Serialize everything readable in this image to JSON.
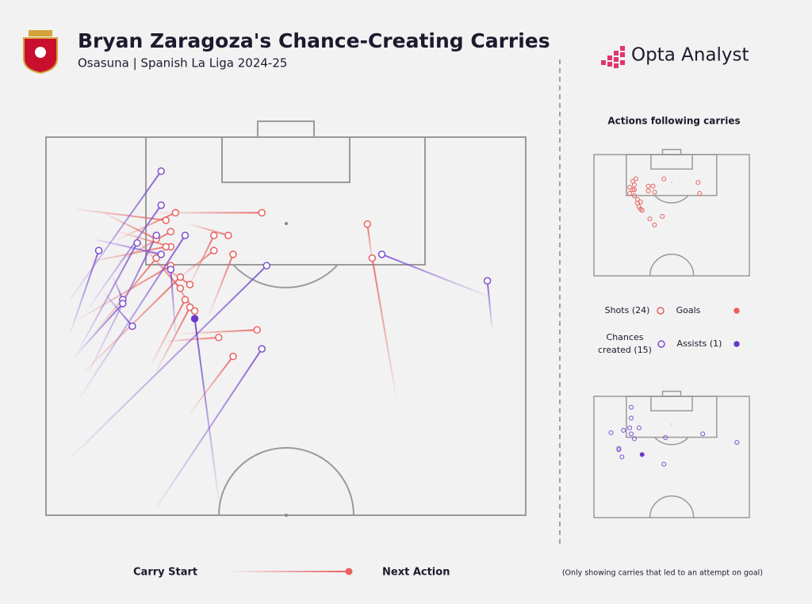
{
  "header": {
    "title": "Bryan Zaragoza's Chance-Creating Carries",
    "subtitle": "Osasuna | Spanish La Liga 2024-25"
  },
  "brand": "Opta Analyst",
  "panel_title": "Actions following carries",
  "legend": {
    "start": "Carry Start",
    "end": "Next Action"
  },
  "footnote": "(Only showing carries that led to an attempt on goal)",
  "chart_data": {
    "type": "carry_map",
    "xlim": [
      0,
      100
    ],
    "ylim": [
      0,
      100
    ],
    "series": [
      {
        "name": "Shots (24)",
        "color": "#e8615f",
        "marker": "hollow",
        "carries": [
          {
            "start": [
              23,
              20
            ],
            "end": [
              45,
              20
            ]
          },
          {
            "start": [
              15,
              27
            ],
            "end": [
              27,
              20
            ]
          },
          {
            "start": [
              6,
              19
            ],
            "end": [
              25,
              22
            ]
          },
          {
            "start": [
              30,
              23
            ],
            "end": [
              38,
              26
            ]
          },
          {
            "start": [
              30,
              39
            ],
            "end": [
              35,
              26
            ]
          },
          {
            "start": [
              12,
              20
            ],
            "end": [
              23,
              27
            ]
          },
          {
            "start": [
              15,
              25
            ],
            "end": [
              26,
              29
            ]
          },
          {
            "start": [
              9,
              33
            ],
            "end": [
              25,
              29
            ]
          },
          {
            "start": [
              28,
              37
            ],
            "end": [
              35,
              30
            ]
          },
          {
            "start": [
              34,
              47
            ],
            "end": [
              39,
              31
            ]
          },
          {
            "start": [
              10,
              52
            ],
            "end": [
              23,
              32
            ]
          },
          {
            "start": [
              7,
              48
            ],
            "end": [
              26,
              34
            ]
          },
          {
            "start": [
              19,
              27
            ],
            "end": [
              28,
              40
            ]
          },
          {
            "start": [
              23,
              33
            ],
            "end": [
              30,
              39
            ]
          },
          {
            "start": [
              22,
              60
            ],
            "end": [
              29,
              43
            ]
          },
          {
            "start": [
              23,
              62
            ],
            "end": [
              30,
              45
            ]
          },
          {
            "start": [
              25,
              35
            ],
            "end": [
              31,
              46
            ]
          },
          {
            "start": [
              28,
              52
            ],
            "end": [
              44,
              51
            ]
          },
          {
            "start": [
              25,
              54
            ],
            "end": [
              36,
              53
            ]
          },
          {
            "start": [
              30,
              73
            ],
            "end": [
              39,
              58
            ]
          },
          {
            "start": [
              68,
              33
            ],
            "end": [
              67,
              23
            ]
          },
          {
            "start": [
              73,
              69
            ],
            "end": [
              68,
              32
            ]
          },
          {
            "start": [
              8,
              62
            ],
            "end": [
              28,
              37
            ]
          },
          {
            "start": [
              15,
              33
            ],
            "end": [
              26,
              25
            ]
          }
        ]
      },
      {
        "name": "Goals",
        "color": "#e8615f",
        "marker": "filled",
        "carries": []
      },
      {
        "name": "Chances created (15)",
        "color": "#7d4fd0",
        "marker": "hollow",
        "carries": [
          {
            "start": [
              5,
              43
            ],
            "end": [
              24,
              9
            ]
          },
          {
            "start": [
              9,
              45
            ],
            "end": [
              24,
              18
            ]
          },
          {
            "start": [
              5,
              52
            ],
            "end": [
              11,
              30
            ]
          },
          {
            "start": [
              7,
              56
            ],
            "end": [
              19,
              28
            ]
          },
          {
            "start": [
              9,
              62
            ],
            "end": [
              23,
              26
            ]
          },
          {
            "start": [
              7,
              69
            ],
            "end": [
              29,
              26
            ]
          },
          {
            "start": [
              27,
              52
            ],
            "end": [
              26,
              35
            ]
          },
          {
            "start": [
              14,
              37
            ],
            "end": [
              16,
              43
            ]
          },
          {
            "start": [
              6,
              58
            ],
            "end": [
              16,
              44
            ]
          },
          {
            "start": [
              12,
              41
            ],
            "end": [
              18,
              50
            ]
          },
          {
            "start": [
              5,
              85
            ],
            "end": [
              46,
              34
            ]
          },
          {
            "start": [
              23,
              98
            ],
            "end": [
              45,
              56
            ]
          },
          {
            "start": [
              92,
              42
            ],
            "end": [
              70,
              31
            ]
          },
          {
            "start": [
              93,
              51
            ],
            "end": [
              92,
              38
            ]
          },
          {
            "start": [
              10,
              27
            ],
            "end": [
              24,
              31
            ]
          }
        ]
      },
      {
        "name": "Assists (1)",
        "color": "#6a3bc8",
        "marker": "filled",
        "carries": [
          {
            "start": [
              36,
              96
            ],
            "end": [
              31,
              48
            ]
          }
        ]
      }
    ]
  }
}
